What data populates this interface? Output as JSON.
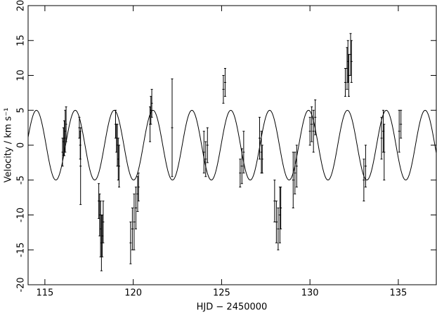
{
  "chart_data": {
    "type": "errorbar",
    "xlabel": "HJD − 2450000",
    "ylabel": "Velocity / km s⁻¹",
    "xlim": [
      114.05,
      137.15
    ],
    "ylim": [
      -20,
      20
    ],
    "xticks": [
      115,
      120,
      125,
      130,
      135
    ],
    "yticks": [
      -20,
      -15,
      -10,
      -5,
      0,
      5,
      10,
      15,
      20
    ],
    "model": {
      "amplitude": 5,
      "period": 2.2,
      "t0": 114.52,
      "color": "#000000"
    },
    "series": [
      {
        "color": "#000000",
        "x": [
          116.0,
          116.05,
          116.1,
          116.15,
          116.2,
          116.95,
          117.0,
          117.02,
          118.05,
          118.1,
          118.15,
          118.2,
          118.25,
          118.3,
          119.0,
          119.05,
          119.1,
          119.15,
          119.2,
          119.85,
          119.95,
          120.05,
          120.15,
          120.25,
          120.3,
          120.95,
          121.0,
          121.05,
          122.2,
          124.0,
          124.1,
          124.2,
          125.1,
          125.2,
          126.05,
          126.15,
          126.25,
          127.15,
          127.25,
          127.3,
          128.0,
          128.1,
          128.2,
          128.3,
          128.35,
          129.05,
          129.15,
          129.25,
          130.0,
          130.1,
          130.2,
          130.3,
          132.0,
          132.1,
          132.15,
          132.2,
          132.3,
          132.35,
          133.05,
          133.15,
          134.05,
          134.15,
          134.2,
          135.05,
          135.15
        ],
        "values": [
          -1,
          0.5,
          1,
          2,
          3,
          2.5,
          0,
          -3,
          -8,
          -10,
          -12,
          -14,
          -13,
          -11,
          3,
          1,
          0,
          -2,
          -3,
          -14,
          -12,
          -11,
          -9,
          -7,
          -6,
          3,
          5,
          6,
          2.5,
          -1,
          -2,
          0,
          8,
          9,
          -4,
          -3,
          -1,
          1,
          -1,
          -2,
          -8,
          -11,
          -12,
          -10,
          -9,
          -5,
          -4,
          -3,
          2,
          3,
          2,
          4,
          9,
          11,
          12,
          10,
          13,
          12,
          -5,
          -3,
          1,
          2,
          -1,
          2,
          3
        ],
        "errors": [
          2,
          2,
          2.5,
          3,
          2.5,
          1.5,
          2,
          5.5,
          2.5,
          3,
          4,
          4,
          3,
          3,
          2,
          2,
          3,
          3,
          3,
          3,
          3,
          4,
          3,
          2.5,
          2,
          2.5,
          2,
          2,
          7,
          3,
          2.5,
          2.5,
          2,
          2,
          2,
          2.5,
          3,
          3,
          3,
          2,
          3,
          3,
          3,
          4,
          3,
          4,
          3,
          3,
          2,
          2.5,
          3,
          2.5,
          2,
          3,
          3,
          3,
          3,
          3,
          3,
          3,
          3,
          3,
          4,
          3,
          2
        ]
      }
    ]
  }
}
